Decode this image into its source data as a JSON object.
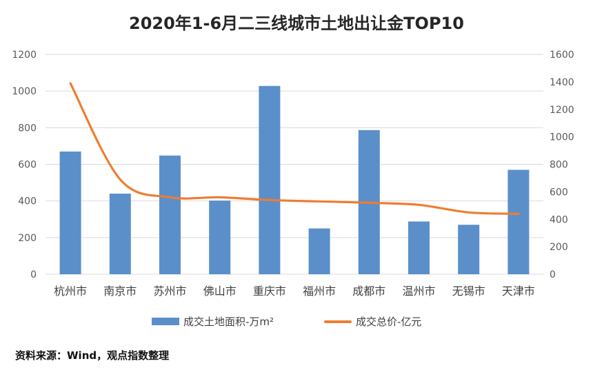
{
  "title": "2020年1-6月二三线城市土地出让金TOP10",
  "source_text": "资料来源：Wind，观点指数整理",
  "chart_data": {
    "type": "bar",
    "title": "2020年1-6月二三线城市土地出让金TOP10",
    "categories": [
      "杭州市",
      "南京市",
      "苏州市",
      "佛山市",
      "重庆市",
      "福州市",
      "成都市",
      "温州市",
      "无锡市",
      "天津市"
    ],
    "series": [
      {
        "name": "成交土地面积-万m²",
        "type": "bar",
        "axis": "left",
        "color": "#5b8fc9",
        "values": [
          670,
          440,
          648,
          402,
          1028,
          250,
          787,
          288,
          270,
          570
        ]
      },
      {
        "name": "成交总价-亿元",
        "type": "line",
        "axis": "right",
        "color": "#ed7d31",
        "values": [
          1390,
          690,
          560,
          560,
          540,
          530,
          520,
          505,
          450,
          440
        ]
      }
    ],
    "y_left": {
      "min": 0,
      "max": 1200,
      "ticks": [
        0,
        200,
        400,
        600,
        800,
        1000,
        1200
      ]
    },
    "y_right": {
      "min": 0,
      "max": 1600,
      "ticks": [
        0,
        200,
        400,
        600,
        800,
        1000,
        1200,
        1400,
        1600
      ]
    },
    "grid": true,
    "legend_position": "bottom"
  }
}
